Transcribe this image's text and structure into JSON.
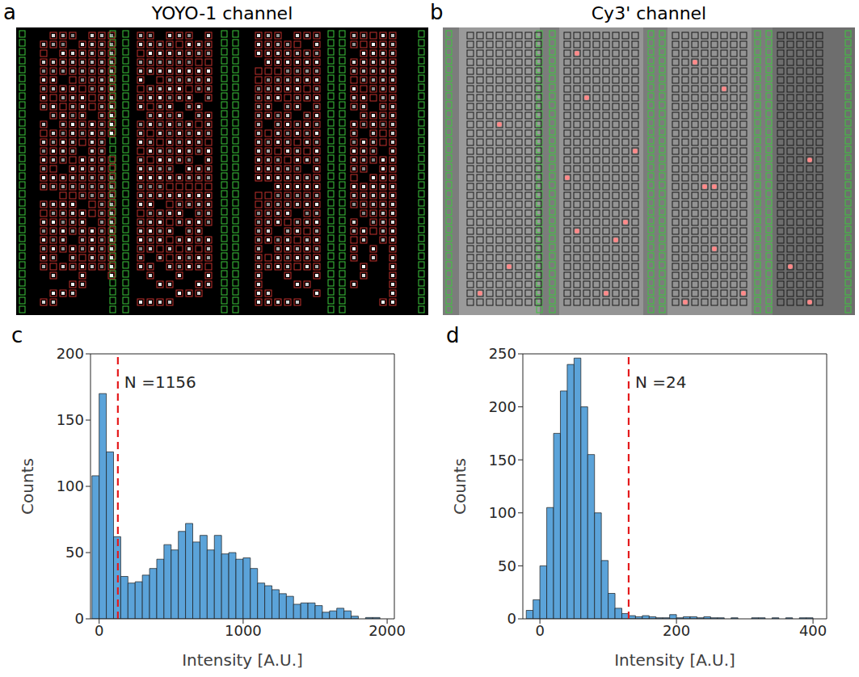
{
  "chart_data": [
    {
      "type": "image",
      "panel_label": "a",
      "title": "YOYO-1 channel"
    },
    {
      "type": "image",
      "panel_label": "b",
      "title": "Cy3' channel"
    },
    {
      "type": "histogram",
      "panel_label": "c",
      "bins": [
        -50,
        0,
        50,
        100,
        150,
        200,
        250,
        300,
        350,
        400,
        450,
        500,
        550,
        600,
        650,
        700,
        750,
        800,
        850,
        900,
        950,
        1000,
        1050,
        1100,
        1150,
        1200,
        1250,
        1300,
        1350,
        1400,
        1450,
        1500,
        1550,
        1600,
        1650,
        1700,
        1750,
        1800,
        1850,
        1900,
        1950
      ],
      "counts": [
        108,
        170,
        126,
        62,
        32,
        27,
        28,
        33,
        38,
        45,
        56,
        52,
        66,
        72,
        58,
        63,
        52,
        63,
        49,
        50,
        45,
        46,
        38,
        27,
        25,
        22,
        19,
        17,
        11,
        12,
        12,
        10,
        5,
        6,
        8,
        6,
        2,
        0,
        1,
        1
      ],
      "color": "#5ba3d9",
      "xlim": [
        -60,
        2050
      ],
      "xticks": [
        0,
        1000,
        2000
      ],
      "ylim": [
        0,
        200
      ],
      "yticks": [
        0,
        50,
        100,
        150,
        200
      ],
      "x_label": "Intensity [A.U.]",
      "y_label": "Counts",
      "threshold": {
        "value": 130,
        "label": "N =1156",
        "color": "#e41a1c",
        "line_style": "dashed"
      }
    },
    {
      "type": "histogram",
      "panel_label": "d",
      "bins": [
        -20,
        -10,
        0,
        10,
        20,
        30,
        40,
        50,
        60,
        70,
        80,
        90,
        100,
        110,
        120,
        130,
        140,
        150,
        160,
        170,
        180,
        190,
        200,
        210,
        220,
        230,
        240,
        250,
        260,
        270,
        280,
        290,
        300,
        310,
        320,
        330,
        340,
        350,
        360,
        370,
        380,
        390,
        400
      ],
      "counts": [
        8,
        18,
        50,
        105,
        175,
        215,
        240,
        246,
        200,
        155,
        100,
        55,
        24,
        10,
        5,
        3,
        2,
        3,
        2,
        1,
        1,
        4,
        1,
        2,
        2,
        1,
        2,
        1,
        1,
        0,
        1,
        0,
        0,
        1,
        1,
        0,
        1,
        0,
        1,
        0,
        1,
        1
      ],
      "color": "#5ba3d9",
      "xlim": [
        -25,
        420
      ],
      "xticks": [
        0,
        200,
        400
      ],
      "ylim": [
        0,
        250
      ],
      "yticks": [
        0,
        50,
        100,
        150,
        200,
        250
      ],
      "x_label": "Intensity [A.U.]",
      "y_label": "Counts",
      "threshold": {
        "value": 130,
        "label": "N =24",
        "color": "#e41a1c",
        "line_style": "dashed"
      }
    }
  ]
}
